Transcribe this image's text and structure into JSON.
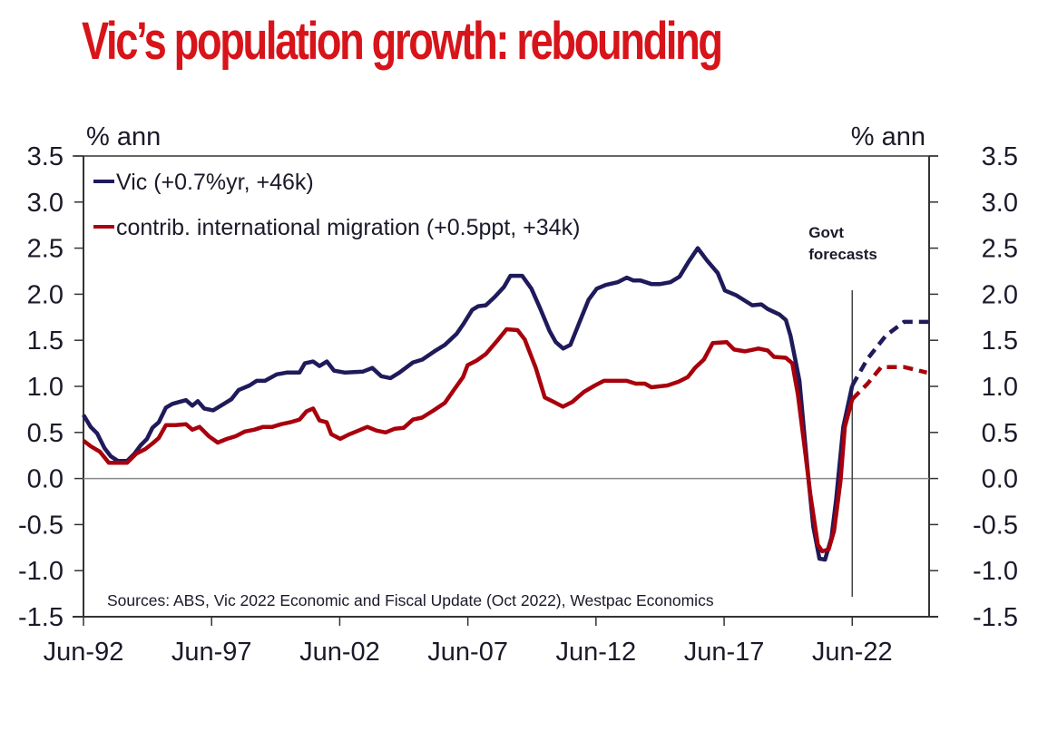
{
  "title": "Vic’s population growth: rebounding",
  "chart_data": {
    "type": "line",
    "title": "Vic’s population growth: rebounding",
    "ylabel_left": "% ann",
    "ylabel_right": "% ann",
    "xlabel": "",
    "ylim": [
      -1.5,
      3.5
    ],
    "yticks": [
      3.5,
      3.0,
      2.5,
      2.0,
      1.5,
      1.0,
      0.5,
      0.0,
      -0.5,
      -1.0,
      -1.5
    ],
    "ytick_labels": [
      "3.5",
      "3.0",
      "2.5",
      "2.0",
      "1.5",
      "1.0",
      "0.5",
      "0.0",
      "-0.5",
      "-1.0",
      "-1.5"
    ],
    "xlim": [
      1992.5,
      2025.5
    ],
    "xticks": [
      1992.5,
      1997.5,
      2002.5,
      2007.5,
      2012.5,
      2017.5,
      2022.5
    ],
    "xtick_labels": [
      "Jun-92",
      "Jun-97",
      "Jun-02",
      "Jun-07",
      "Jun-12",
      "Jun-17",
      "Jun-22"
    ],
    "grid": false,
    "zero_line": true,
    "legend_placement": "top-left",
    "annotations": [
      {
        "text": [
          "Govt",
          "forecasts"
        ],
        "x": 2022.5,
        "kind": "vertical-divider"
      }
    ],
    "source": "Sources: ABS, Vic 2022 Economic and Fiscal Update (Oct 2022), Westpac Economics",
    "series": [
      {
        "name": "Vic (+0.7%yr, +46k)",
        "color": "#1f1a5a",
        "style": "solid",
        "x": [
          1992.5,
          1992.78,
          1993.03,
          1993.32,
          1993.57,
          1993.85,
          1994.2,
          1994.49,
          1994.73,
          1994.98,
          1995.19,
          1995.44,
          1995.72,
          1995.97,
          1996.22,
          1996.5,
          1996.75,
          1996.96,
          1997.21,
          1997.56,
          1997.92,
          1998.27,
          1998.55,
          1998.98,
          1999.26,
          1999.58,
          2000.04,
          2000.43,
          2000.93,
          2001.14,
          2001.46,
          2001.71,
          2002.0,
          2002.28,
          2002.7,
          2003.41,
          2003.77,
          2004.12,
          2004.48,
          2004.83,
          2005.36,
          2005.72,
          2006.25,
          2006.6,
          2007.06,
          2007.31,
          2007.67,
          2007.91,
          2008.2,
          2008.55,
          2008.91,
          2009.16,
          2009.62,
          2009.98,
          2010.33,
          2010.69,
          2010.93,
          2011.22,
          2011.5,
          2011.86,
          2012.21,
          2012.53,
          2012.88,
          2013.34,
          2013.7,
          2013.95,
          2014.23,
          2014.66,
          2015.01,
          2015.4,
          2015.76,
          2016.11,
          2016.47,
          2016.82,
          2017.25,
          2017.53,
          2017.96,
          2018.6,
          2018.95,
          2019.2,
          2019.66,
          2019.91,
          2020.09,
          2020.27,
          2020.44,
          2020.62,
          2020.8,
          2020.98,
          2021.22,
          2021.44,
          2021.69,
          2021.87,
          2022.15,
          2022.5
        ],
        "values": [
          0.69,
          0.56,
          0.49,
          0.33,
          0.24,
          0.19,
          0.19,
          0.27,
          0.36,
          0.43,
          0.55,
          0.61,
          0.77,
          0.81,
          0.83,
          0.85,
          0.79,
          0.84,
          0.76,
          0.74,
          0.8,
          0.86,
          0.96,
          1.01,
          1.06,
          1.06,
          1.13,
          1.15,
          1.15,
          1.25,
          1.27,
          1.22,
          1.27,
          1.17,
          1.15,
          1.16,
          1.2,
          1.11,
          1.09,
          1.15,
          1.26,
          1.29,
          1.39,
          1.45,
          1.57,
          1.67,
          1.83,
          1.87,
          1.88,
          1.97,
          2.08,
          2.2,
          2.2,
          2.06,
          1.84,
          1.6,
          1.48,
          1.41,
          1.45,
          1.7,
          1.94,
          2.06,
          2.1,
          2.13,
          2.18,
          2.15,
          2.15,
          2.11,
          2.11,
          2.13,
          2.19,
          2.35,
          2.5,
          2.37,
          2.23,
          2.04,
          1.99,
          1.88,
          1.89,
          1.84,
          1.78,
          1.72,
          1.55,
          1.3,
          1.06,
          0.51,
          -0.03,
          -0.52,
          -0.87,
          -0.88,
          -0.64,
          -0.23,
          0.56,
          1.01
        ]
      },
      {
        "name": "contrib. international migration (+0.5ppt, +34k)",
        "color": "#a8000c",
        "style": "solid",
        "x": [
          1992.5,
          1992.78,
          1993.14,
          1993.49,
          1993.85,
          1994.2,
          1994.56,
          1994.91,
          1995.19,
          1995.44,
          1995.72,
          1996.08,
          1996.5,
          1996.75,
          1997.03,
          1997.39,
          1997.74,
          1998.1,
          1998.45,
          1998.8,
          1999.16,
          1999.51,
          1999.87,
          2000.22,
          2000.57,
          2000.93,
          2001.21,
          2001.46,
          2001.71,
          2001.99,
          2002.17,
          2002.52,
          2002.88,
          2003.23,
          2003.58,
          2003.94,
          2004.29,
          2004.65,
          2005.0,
          2005.36,
          2005.71,
          2006.17,
          2006.6,
          2006.95,
          2007.31,
          2007.49,
          2007.84,
          2008.2,
          2008.66,
          2009.01,
          2009.44,
          2009.72,
          2010.15,
          2010.5,
          2010.86,
          2011.21,
          2011.57,
          2012.03,
          2012.46,
          2012.81,
          2013.34,
          2013.7,
          2014.05,
          2014.41,
          2014.66,
          2015.29,
          2015.72,
          2016.08,
          2016.36,
          2016.71,
          2017.06,
          2017.6,
          2017.89,
          2018.31,
          2018.84,
          2019.2,
          2019.45,
          2019.91,
          2020.16,
          2020.38,
          2020.63,
          2020.87,
          2021.16,
          2021.33,
          2021.58,
          2021.79,
          2022.04,
          2022.21,
          2022.5
        ],
        "values": [
          0.41,
          0.35,
          0.29,
          0.17,
          0.17,
          0.17,
          0.27,
          0.32,
          0.38,
          0.44,
          0.58,
          0.58,
          0.59,
          0.53,
          0.56,
          0.46,
          0.39,
          0.43,
          0.46,
          0.51,
          0.53,
          0.56,
          0.56,
          0.59,
          0.61,
          0.64,
          0.73,
          0.76,
          0.63,
          0.61,
          0.48,
          0.43,
          0.48,
          0.52,
          0.56,
          0.52,
          0.5,
          0.54,
          0.55,
          0.64,
          0.66,
          0.74,
          0.82,
          0.96,
          1.1,
          1.23,
          1.28,
          1.35,
          1.5,
          1.62,
          1.61,
          1.51,
          1.2,
          0.88,
          0.83,
          0.78,
          0.83,
          0.94,
          1.01,
          1.06,
          1.06,
          1.06,
          1.03,
          1.03,
          0.99,
          1.01,
          1.05,
          1.1,
          1.2,
          1.29,
          1.47,
          1.48,
          1.4,
          1.38,
          1.41,
          1.39,
          1.32,
          1.31,
          1.25,
          0.91,
          0.36,
          -0.18,
          -0.72,
          -0.79,
          -0.77,
          -0.57,
          -0.03,
          0.56,
          0.86
        ]
      },
      {
        "name": "Vic forecast",
        "color": "#1f1a5a",
        "style": "dashed",
        "x": [
          2022.5,
          2023.1,
          2023.81,
          2024.52,
          2025.48
        ],
        "values": [
          1.01,
          1.3,
          1.55,
          1.7,
          1.7
        ]
      },
      {
        "name": "contrib. international migration forecast",
        "color": "#a8000c",
        "style": "dashed",
        "x": [
          2022.5,
          2023.1,
          2023.63,
          2024.52,
          2025.41
        ],
        "values": [
          0.86,
          1.03,
          1.21,
          1.21,
          1.15
        ]
      }
    ]
  },
  "legend": [
    {
      "label": "Vic (+0.7%yr, +46k)",
      "color": "#1f1a5a"
    },
    {
      "label": "contrib. international migration (+0.5ppt, +34k)",
      "color": "#a8000c"
    }
  ],
  "colors": {
    "title": "#d7141a",
    "axis": "#333333",
    "vic": "#1f1a5a",
    "migration": "#a8000c"
  }
}
